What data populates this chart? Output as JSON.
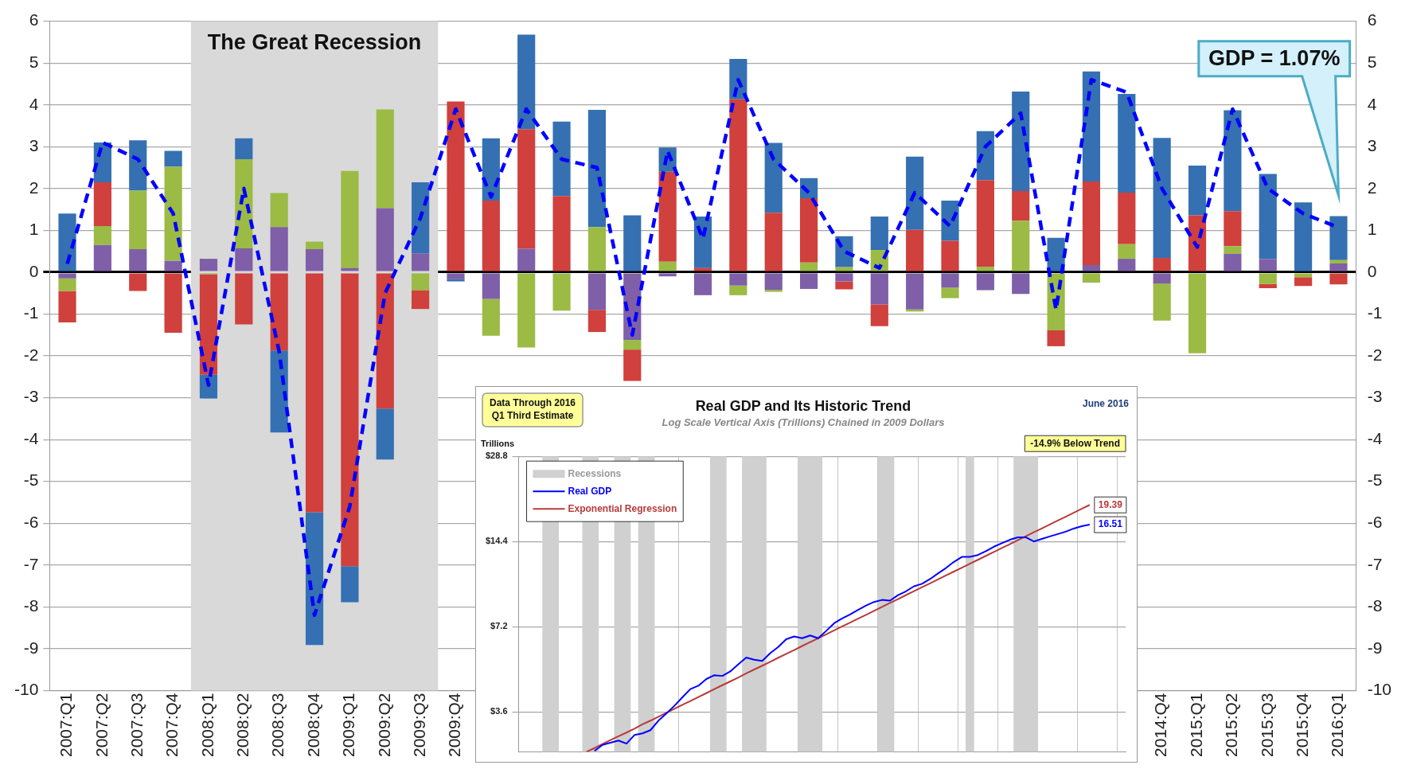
{
  "chart_data": [
    {
      "type": "bar",
      "stacked": true,
      "categories": [
        "2007:Q1",
        "2007:Q2",
        "2007:Q3",
        "2007:Q4",
        "2008:Q1",
        "2008:Q2",
        "2008:Q3",
        "2008:Q4",
        "2009:Q1",
        "2009:Q2",
        "2009:Q3",
        "2009:Q4",
        null,
        null,
        null,
        null,
        null,
        null,
        null,
        null,
        null,
        null,
        null,
        null,
        null,
        null,
        null,
        null,
        null,
        null,
        null,
        "2014:Q4",
        "2015:Q1",
        "2015:Q2",
        "2015:Q3",
        "2015:Q4",
        "2016:Q1"
      ],
      "series": [
        {
          "color": "#7f5fa8",
          "values": [
            -0.15,
            0.65,
            0.55,
            0.27,
            0.32,
            0.57,
            1.08,
            0.55,
            0.1,
            1.53,
            0.45,
            -0.17,
            -0.64,
            0.56,
            null,
            -0.9,
            -1.62,
            -0.1,
            -0.55,
            -0.32,
            -0.42,
            -0.4,
            -0.22,
            -0.77,
            -0.89,
            -0.37,
            -0.43,
            -0.52,
            null,
            0.17,
            0.32,
            -0.27,
            null,
            0.44,
            0.31,
            null,
            0.21
          ]
        },
        {
          "color": "#9bbb45",
          "values": [
            -0.3,
            0.45,
            1.4,
            2.25,
            -0.05,
            2.13,
            0.81,
            0.18,
            2.32,
            2.36,
            -0.43,
            null,
            -0.88,
            -1.8,
            -0.92,
            1.08,
            -0.23,
            0.25,
            null,
            -0.23,
            -0.05,
            0.23,
            0.12,
            0.53,
            -0.05,
            -0.25,
            0.13,
            1.23,
            -1.39,
            -0.25,
            0.35,
            -0.89,
            -1.94,
            0.18,
            -0.28,
            -0.12,
            0.08
          ]
        },
        {
          "color": "#d0403c",
          "values": [
            -0.75,
            1.05,
            -0.45,
            -1.45,
            -2.4,
            -1.25,
            -1.87,
            -5.74,
            -7.03,
            -3.26,
            -0.45,
            4.08,
            1.71,
            2.86,
            1.82,
            -0.53,
            -0.75,
            2.15,
            0.1,
            4.13,
            1.42,
            1.54,
            -0.19,
            -0.52,
            1.01,
            0.75,
            2.07,
            0.71,
            -0.38,
            2.0,
            1.23,
            0.34,
            1.36,
            0.84,
            -0.1,
            -0.21,
            -0.29
          ]
        },
        {
          "color": "#3570b2",
          "values": [
            1.4,
            0.95,
            1.2,
            0.38,
            -0.57,
            0.5,
            -1.96,
            -3.17,
            -0.86,
            -1.22,
            1.7,
            -0.05,
            1.49,
            2.26,
            1.78,
            2.8,
            1.36,
            0.58,
            1.23,
            0.97,
            1.67,
            0.48,
            0.74,
            0.8,
            1.75,
            0.96,
            1.17,
            2.38,
            0.82,
            2.63,
            2.36,
            2.87,
            1.19,
            2.41,
            2.04,
            1.67,
            1.05
          ]
        },
        {
          "type": "line",
          "color": "#0000ff",
          "line_style": "dashed",
          "values": [
            0.2,
            3.1,
            2.7,
            1.4,
            -2.7,
            2.0,
            -1.9,
            -8.2,
            -5.6,
            -0.5,
            1.3,
            3.9,
            1.8,
            3.9,
            2.7,
            2.5,
            -1.5,
            2.9,
            0.8,
            4.6,
            2.7,
            1.9,
            0.5,
            0.1,
            1.9,
            1.1,
            3.0,
            3.8,
            -0.9,
            4.6,
            4.3,
            2.0,
            0.6,
            3.9,
            2.0,
            1.4,
            1.07
          ]
        }
      ],
      "ylim": [
        -10,
        6
      ],
      "yticks": [
        -10,
        -9,
        -8,
        -7,
        -6,
        -5,
        -4,
        -3,
        -2,
        -1,
        0,
        1,
        2,
        3,
        4,
        5,
        6
      ],
      "y2lim": [
        -10,
        6
      ],
      "y2ticks": [
        -10,
        -9,
        -8,
        -7,
        -6,
        -5,
        -4,
        -3,
        -2,
        -1,
        0,
        1,
        2,
        3,
        4,
        5,
        6
      ],
      "grid": "y",
      "bands": [
        {
          "axis": "x",
          "from": "2008:Q1",
          "to": "2009:Q3",
          "label": "The Great Recession",
          "color": "#d9d9d9"
        }
      ],
      "annotations": [
        "GDP = 1.07%"
      ]
    },
    {
      "type": "line",
      "title": "Real GDP and Its Historic Trend",
      "subtitle": "Log Scale Vertical Axis (Trillions) Chained in 2009 Dollars",
      "ylabel": "Trillions",
      "categories": [
        null,
        null,
        null,
        null,
        null,
        null,
        null,
        null,
        null,
        null,
        null,
        null,
        null,
        null,
        null,
        null,
        null,
        null,
        null,
        null,
        null,
        null,
        null,
        null,
        null,
        null,
        null,
        null,
        null,
        null,
        null,
        null,
        null,
        null,
        null,
        null,
        null,
        null,
        null,
        null,
        null,
        null,
        null,
        null,
        null,
        null,
        null,
        null,
        null,
        null,
        null,
        null,
        null,
        null,
        null,
        null,
        null,
        null,
        null,
        null,
        null,
        null,
        null,
        null,
        null,
        null,
        null,
        null,
        null,
        null,
        null,
        null,
        null,
        null,
        null,
        null
      ],
      "series": [
        {
          "name": "Recessions",
          "type": "bar",
          "color": "#d0d0d0",
          "values": [
            null,
            null,
            null,
            28.8,
            28.8,
            null,
            null,
            null,
            28.8,
            28.8,
            null,
            null,
            28.8,
            28.8,
            null,
            28.8,
            28.8,
            null,
            null,
            null,
            null,
            null,
            null,
            null,
            28.8,
            28.8,
            null,
            null,
            28.8,
            28.8,
            28.8,
            null,
            null,
            null,
            null,
            28.8,
            28.8,
            28.8,
            null,
            null,
            null,
            null,
            null,
            null,
            null,
            28.8,
            28.8,
            null,
            null,
            null,
            null,
            null,
            null,
            null,
            null,
            null,
            28.8,
            null,
            null,
            null,
            null,
            null,
            28.8,
            28.8,
            28.8,
            null,
            null,
            null,
            null,
            null,
            null,
            null,
            null,
            null,
            null,
            null
          ]
        },
        {
          "name": "Real GDP",
          "type": "line",
          "color": "#0000ff",
          "values": [
            null,
            null,
            null,
            null,
            null,
            null,
            null,
            null,
            null,
            2.62,
            2.75,
            2.8,
            2.85,
            2.78,
            2.98,
            3.02,
            3.1,
            3.35,
            3.55,
            3.78,
            4.05,
            4.33,
            4.45,
            4.7,
            4.85,
            4.82,
            5.0,
            5.3,
            5.6,
            5.5,
            5.45,
            5.8,
            6.1,
            6.5,
            6.65,
            6.55,
            6.7,
            6.55,
            6.95,
            7.4,
            7.7,
            7.95,
            8.25,
            8.55,
            8.8,
            8.95,
            8.9,
            9.3,
            9.6,
            10.0,
            10.2,
            10.6,
            11.1,
            11.6,
            12.2,
            12.7,
            12.7,
            12.9,
            13.3,
            13.8,
            14.2,
            14.6,
            14.9,
            14.9,
            14.4,
            14.7,
            15.0,
            15.3,
            15.6,
            16.0,
            16.3,
            16.51,
            null,
            null,
            null,
            null
          ],
          "value_labels": [
            null,
            null,
            null,
            null,
            null,
            null,
            null,
            null,
            null,
            null,
            null,
            null,
            null,
            null,
            null,
            null,
            null,
            null,
            null,
            null,
            null,
            null,
            null,
            null,
            null,
            null,
            null,
            null,
            null,
            null,
            null,
            null,
            null,
            null,
            null,
            null,
            null,
            null,
            null,
            null,
            null,
            null,
            null,
            null,
            null,
            null,
            null,
            null,
            null,
            null,
            null,
            null,
            null,
            null,
            null,
            null,
            null,
            null,
            null,
            null,
            null,
            null,
            null,
            null,
            null,
            null,
            null,
            null,
            null,
            null,
            null,
            "16.51",
            null,
            null,
            null,
            null
          ]
        },
        {
          "name": "Exponential Regression",
          "type": "line",
          "color": "#b83a3a",
          "values": [
            null,
            null,
            null,
            null,
            null,
            null,
            null,
            null,
            2.6,
            2.68,
            2.77,
            2.86,
            2.95,
            3.04,
            3.14,
            3.25,
            3.35,
            3.46,
            3.57,
            3.69,
            3.81,
            3.93,
            4.06,
            4.19,
            4.33,
            4.47,
            4.61,
            4.76,
            4.92,
            5.08,
            5.24,
            5.41,
            5.59,
            5.77,
            5.95,
            6.15,
            6.35,
            6.55,
            6.76,
            6.98,
            7.21,
            7.44,
            7.68,
            7.93,
            8.19,
            8.46,
            8.73,
            9.01,
            9.31,
            9.61,
            9.92,
            10.24,
            10.57,
            10.92,
            11.27,
            11.64,
            12.01,
            12.4,
            12.81,
            13.22,
            13.65,
            14.09,
            14.55,
            15.02,
            15.51,
            16.01,
            16.53,
            17.07,
            17.62,
            18.19,
            18.78,
            19.39,
            null,
            null,
            null,
            null
          ],
          "value_labels": [
            null,
            null,
            null,
            null,
            null,
            null,
            null,
            null,
            null,
            null,
            null,
            null,
            null,
            null,
            null,
            null,
            null,
            null,
            null,
            null,
            null,
            null,
            null,
            null,
            null,
            null,
            null,
            null,
            null,
            null,
            null,
            null,
            null,
            null,
            null,
            null,
            null,
            null,
            null,
            null,
            null,
            null,
            null,
            null,
            null,
            null,
            null,
            null,
            null,
            null,
            null,
            null,
            null,
            null,
            null,
            null,
            null,
            null,
            null,
            null,
            null,
            null,
            null,
            null,
            null,
            null,
            null,
            null,
            null,
            null,
            null,
            "19.39",
            null,
            null,
            null,
            null
          ]
        }
      ],
      "ylim": [
        2.6,
        28.8
      ],
      "yticks": [
        {
          "value": 3.6,
          "label": "$3.6"
        },
        {
          "value": 7.2,
          "label": "$7.2"
        },
        {
          "value": 14.4,
          "label": "$14.4"
        },
        {
          "value": 28.8,
          "label": "$28.8"
        }
      ],
      "log": "y",
      "grid": true,
      "legend": "top left",
      "tick_labels": "y",
      "annotations": [
        "Data Through 2016 Q1 Third Estimate",
        "June 2016",
        "-14.9% Below Trend"
      ]
    }
  ]
}
